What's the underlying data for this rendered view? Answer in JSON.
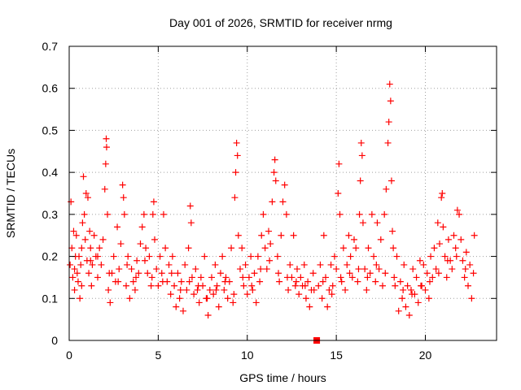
{
  "chart_data": {
    "type": "scatter",
    "title": "Day 001 of 2026, SRMTID for receiver nrmg",
    "xlabel": "GPS time / hours",
    "ylabel": "SRMTID / TECUs",
    "xlim": [
      0,
      24
    ],
    "ylim": [
      0,
      0.7
    ],
    "xticks": [
      0,
      5,
      10,
      15,
      20
    ],
    "yticks": [
      0,
      0.1,
      0.2,
      0.3,
      0.4,
      0.5,
      0.6,
      0.7
    ],
    "xtick_labels": [
      "0",
      "5",
      "10",
      "15",
      "20"
    ],
    "ytick_labels": [
      "0",
      "0.1",
      "0.2",
      "0.3",
      "0.4",
      "0.5",
      "0.6",
      "0.7"
    ],
    "grid": true,
    "marker": "plus",
    "colors": {
      "series": "#ff0000",
      "grid": "#a0a0a0",
      "axis": "#000000"
    },
    "series": [
      {
        "name": "SRMTID",
        "points": [
          [
            0.05,
            0.18
          ],
          [
            0.1,
            0.33
          ],
          [
            0.15,
            0.22
          ],
          [
            0.2,
            0.15
          ],
          [
            0.25,
            0.26
          ],
          [
            0.3,
            0.12
          ],
          [
            0.35,
            0.2
          ],
          [
            0.4,
            0.25
          ],
          [
            0.45,
            0.16
          ],
          [
            0.5,
            0.14
          ],
          [
            0.55,
            0.2
          ],
          [
            0.6,
            0.1
          ],
          [
            0.65,
            0.18
          ],
          [
            0.7,
            0.22
          ],
          [
            0.75,
            0.28
          ],
          [
            0.8,
            0.39
          ],
          [
            0.85,
            0.3
          ],
          [
            0.9,
            0.24
          ],
          [
            0.95,
            0.35
          ],
          [
            1.0,
            0.19
          ],
          [
            1.05,
            0.34
          ],
          [
            1.1,
            0.16
          ],
          [
            1.15,
            0.26
          ],
          [
            1.2,
            0.22
          ],
          [
            1.25,
            0.13
          ],
          [
            1.3,
            0.18
          ],
          [
            1.4,
            0.25
          ],
          [
            1.5,
            0.2
          ],
          [
            1.6,
            0.15
          ],
          [
            1.7,
            0.22
          ],
          [
            1.8,
            0.18
          ],
          [
            1.9,
            0.24
          ],
          [
            2.0,
            0.36
          ],
          [
            2.05,
            0.42
          ],
          [
            2.08,
            0.48
          ],
          [
            2.1,
            0.46
          ],
          [
            2.15,
            0.3
          ],
          [
            2.2,
            0.12
          ],
          [
            2.3,
            0.09
          ],
          [
            2.4,
            0.16
          ],
          [
            2.5,
            0.2
          ],
          [
            2.6,
            0.14
          ],
          [
            2.7,
            0.27
          ],
          [
            2.8,
            0.17
          ],
          [
            2.9,
            0.23
          ],
          [
            3.0,
            0.37
          ],
          [
            3.05,
            0.34
          ],
          [
            3.1,
            0.3
          ],
          [
            3.2,
            0.13
          ],
          [
            3.3,
            0.2
          ],
          [
            3.4,
            0.1
          ],
          [
            3.5,
            0.17
          ],
          [
            3.6,
            0.14
          ],
          [
            3.7,
            0.12
          ],
          [
            3.8,
            0.19
          ],
          [
            3.9,
            0.16
          ],
          [
            4.0,
            0.23
          ],
          [
            4.1,
            0.27
          ],
          [
            4.2,
            0.3
          ],
          [
            4.3,
            0.22
          ],
          [
            4.4,
            0.16
          ],
          [
            4.5,
            0.2
          ],
          [
            4.6,
            0.13
          ],
          [
            4.7,
            0.3
          ],
          [
            4.75,
            0.33
          ],
          [
            4.8,
            0.24
          ],
          [
            4.9,
            0.17
          ],
          [
            5.0,
            0.13
          ],
          [
            5.1,
            0.2
          ],
          [
            5.2,
            0.16
          ],
          [
            5.3,
            0.3
          ],
          [
            5.4,
            0.22
          ],
          [
            5.5,
            0.14
          ],
          [
            5.6,
            0.18
          ],
          [
            5.7,
            0.11
          ],
          [
            5.8,
            0.2
          ],
          [
            5.9,
            0.13
          ],
          [
            6.0,
            0.08
          ],
          [
            6.1,
            0.16
          ],
          [
            6.2,
            0.1
          ],
          [
            6.3,
            0.14
          ],
          [
            6.4,
            0.07
          ],
          [
            6.5,
            0.18
          ],
          [
            6.6,
            0.12
          ],
          [
            6.7,
            0.22
          ],
          [
            6.8,
            0.32
          ],
          [
            6.85,
            0.28
          ],
          [
            6.9,
            0.15
          ],
          [
            7.0,
            0.11
          ],
          [
            7.1,
            0.17
          ],
          [
            7.2,
            0.12
          ],
          [
            7.3,
            0.09
          ],
          [
            7.4,
            0.15
          ],
          [
            7.5,
            0.13
          ],
          [
            7.6,
            0.2
          ],
          [
            7.7,
            0.1
          ],
          [
            7.8,
            0.06
          ],
          [
            7.9,
            0.12
          ],
          [
            8.0,
            0.15
          ],
          [
            8.1,
            0.11
          ],
          [
            8.2,
            0.18
          ],
          [
            8.3,
            0.13
          ],
          [
            8.4,
            0.08
          ],
          [
            8.5,
            0.16
          ],
          [
            8.6,
            0.2
          ],
          [
            8.7,
            0.12
          ],
          [
            8.8,
            0.15
          ],
          [
            8.9,
            0.1
          ],
          [
            9.0,
            0.14
          ],
          [
            9.1,
            0.22
          ],
          [
            9.2,
            0.09
          ],
          [
            9.3,
            0.34
          ],
          [
            9.35,
            0.4
          ],
          [
            9.4,
            0.47
          ],
          [
            9.45,
            0.44
          ],
          [
            9.5,
            0.25
          ],
          [
            9.6,
            0.17
          ],
          [
            9.7,
            0.22
          ],
          [
            9.8,
            0.13
          ],
          [
            9.9,
            0.18
          ],
          [
            10.0,
            0.11
          ],
          [
            10.1,
            0.15
          ],
          [
            10.2,
            0.2
          ],
          [
            10.3,
            0.12
          ],
          [
            10.4,
            0.16
          ],
          [
            10.5,
            0.09
          ],
          [
            10.6,
            0.2
          ],
          [
            10.7,
            0.14
          ],
          [
            10.8,
            0.25
          ],
          [
            10.9,
            0.3
          ],
          [
            11.0,
            0.22
          ],
          [
            11.1,
            0.17
          ],
          [
            11.2,
            0.26
          ],
          [
            11.3,
            0.23
          ],
          [
            11.4,
            0.33
          ],
          [
            11.5,
            0.4
          ],
          [
            11.55,
            0.43
          ],
          [
            11.6,
            0.38
          ],
          [
            11.7,
            0.2
          ],
          [
            11.8,
            0.14
          ],
          [
            11.9,
            0.25
          ],
          [
            12.0,
            0.33
          ],
          [
            12.1,
            0.37
          ],
          [
            12.2,
            0.3
          ],
          [
            12.3,
            0.12
          ],
          [
            12.4,
            0.18
          ],
          [
            12.5,
            0.15
          ],
          [
            12.6,
            0.25
          ],
          [
            12.7,
            0.13
          ],
          [
            12.8,
            0.17
          ],
          [
            12.9,
            0.11
          ],
          [
            13.0,
            0.15
          ],
          [
            13.1,
            0.13
          ],
          [
            13.2,
            0.18
          ],
          [
            13.3,
            0.1
          ],
          [
            13.4,
            0.14
          ],
          [
            13.5,
            0.08
          ],
          [
            13.6,
            0.12
          ],
          [
            13.7,
            0.16
          ],
          [
            14.0,
            0.13
          ],
          [
            14.1,
            0.18
          ],
          [
            14.2,
            0.1
          ],
          [
            14.3,
            0.25
          ],
          [
            14.4,
            0.15
          ],
          [
            14.5,
            0.08
          ],
          [
            14.6,
            0.12
          ],
          [
            14.7,
            0.18
          ],
          [
            14.8,
            0.13
          ],
          [
            14.9,
            0.2
          ],
          [
            15.0,
            0.17
          ],
          [
            15.1,
            0.35
          ],
          [
            15.15,
            0.42
          ],
          [
            15.2,
            0.3
          ],
          [
            15.3,
            0.14
          ],
          [
            15.4,
            0.22
          ],
          [
            15.5,
            0.12
          ],
          [
            15.6,
            0.18
          ],
          [
            15.7,
            0.25
          ],
          [
            15.8,
            0.2
          ],
          [
            15.9,
            0.15
          ],
          [
            16.0,
            0.24
          ],
          [
            16.1,
            0.22
          ],
          [
            16.2,
            0.14
          ],
          [
            16.3,
            0.3
          ],
          [
            16.35,
            0.38
          ],
          [
            16.4,
            0.47
          ],
          [
            16.45,
            0.44
          ],
          [
            16.5,
            0.28
          ],
          [
            16.6,
            0.17
          ],
          [
            16.7,
            0.12
          ],
          [
            16.8,
            0.22
          ],
          [
            16.9,
            0.16
          ],
          [
            17.0,
            0.3
          ],
          [
            17.1,
            0.2
          ],
          [
            17.2,
            0.14
          ],
          [
            17.3,
            0.28
          ],
          [
            17.4,
            0.17
          ],
          [
            17.5,
            0.24
          ],
          [
            17.6,
            0.13
          ],
          [
            17.7,
            0.3
          ],
          [
            17.8,
            0.36
          ],
          [
            17.9,
            0.47
          ],
          [
            17.95,
            0.52
          ],
          [
            18.0,
            0.61
          ],
          [
            18.05,
            0.57
          ],
          [
            18.1,
            0.38
          ],
          [
            18.15,
            0.26
          ],
          [
            18.2,
            0.22
          ],
          [
            18.3,
            0.13
          ],
          [
            18.4,
            0.2
          ],
          [
            18.5,
            0.07
          ],
          [
            18.6,
            0.14
          ],
          [
            18.7,
            0.1
          ],
          [
            18.8,
            0.18
          ],
          [
            18.9,
            0.08
          ],
          [
            19.0,
            0.13
          ],
          [
            19.1,
            0.06
          ],
          [
            19.2,
            0.12
          ],
          [
            19.3,
            0.17
          ],
          [
            19.4,
            0.11
          ],
          [
            19.5,
            0.15
          ],
          [
            19.6,
            0.09
          ],
          [
            19.7,
            0.19
          ],
          [
            19.8,
            0.13
          ],
          [
            19.9,
            0.18
          ],
          [
            20.0,
            0.12
          ],
          [
            20.1,
            0.16
          ],
          [
            20.2,
            0.1
          ],
          [
            20.3,
            0.2
          ],
          [
            20.4,
            0.15
          ],
          [
            20.5,
            0.22
          ],
          [
            20.6,
            0.17
          ],
          [
            20.7,
            0.28
          ],
          [
            20.8,
            0.23
          ],
          [
            20.9,
            0.34
          ],
          [
            20.95,
            0.35
          ],
          [
            21.0,
            0.27
          ],
          [
            21.1,
            0.2
          ],
          [
            21.2,
            0.15
          ],
          [
            21.3,
            0.24
          ],
          [
            21.4,
            0.19
          ],
          [
            21.5,
            0.17
          ],
          [
            21.6,
            0.25
          ],
          [
            21.7,
            0.22
          ],
          [
            21.8,
            0.31
          ],
          [
            21.9,
            0.3
          ],
          [
            22.0,
            0.24
          ],
          [
            22.1,
            0.19
          ],
          [
            22.2,
            0.15
          ],
          [
            22.3,
            0.21
          ],
          [
            22.4,
            0.13
          ],
          [
            22.5,
            0.18
          ],
          [
            22.6,
            0.1
          ],
          [
            22.7,
            0.16
          ],
          [
            22.75,
            0.25
          ],
          [
            0.3,
            0.17
          ],
          [
            0.7,
            0.13
          ],
          [
            1.2,
            0.19
          ],
          [
            1.6,
            0.2
          ],
          [
            2.25,
            0.16
          ],
          [
            2.75,
            0.14
          ],
          [
            3.25,
            0.18
          ],
          [
            3.75,
            0.15
          ],
          [
            4.25,
            0.19
          ],
          [
            4.65,
            0.15
          ],
          [
            5.25,
            0.14
          ],
          [
            5.75,
            0.16
          ],
          [
            6.25,
            0.12
          ],
          [
            6.75,
            0.14
          ],
          [
            7.25,
            0.13
          ],
          [
            7.75,
            0.1
          ],
          [
            8.25,
            0.12
          ],
          [
            8.75,
            0.14
          ],
          [
            9.25,
            0.11
          ],
          [
            9.75,
            0.15
          ],
          [
            10.25,
            0.13
          ],
          [
            10.75,
            0.17
          ],
          [
            11.25,
            0.19
          ],
          [
            11.75,
            0.16
          ],
          [
            12.25,
            0.15
          ],
          [
            12.75,
            0.14
          ],
          [
            13.25,
            0.13
          ],
          [
            13.75,
            0.12
          ],
          [
            14.25,
            0.14
          ],
          [
            14.75,
            0.11
          ],
          [
            15.25,
            0.15
          ],
          [
            15.75,
            0.16
          ],
          [
            16.25,
            0.17
          ],
          [
            16.75,
            0.15
          ],
          [
            17.25,
            0.18
          ],
          [
            17.75,
            0.16
          ],
          [
            18.25,
            0.15
          ],
          [
            18.75,
            0.12
          ],
          [
            19.25,
            0.11
          ],
          [
            19.75,
            0.13
          ],
          [
            20.25,
            0.14
          ],
          [
            20.75,
            0.16
          ],
          [
            21.25,
            0.19
          ],
          [
            21.75,
            0.2
          ],
          [
            22.25,
            0.17
          ]
        ]
      }
    ],
    "annotations": [
      {
        "type": "filled-square-marker",
        "x": 13.9,
        "y": 0
      }
    ]
  }
}
